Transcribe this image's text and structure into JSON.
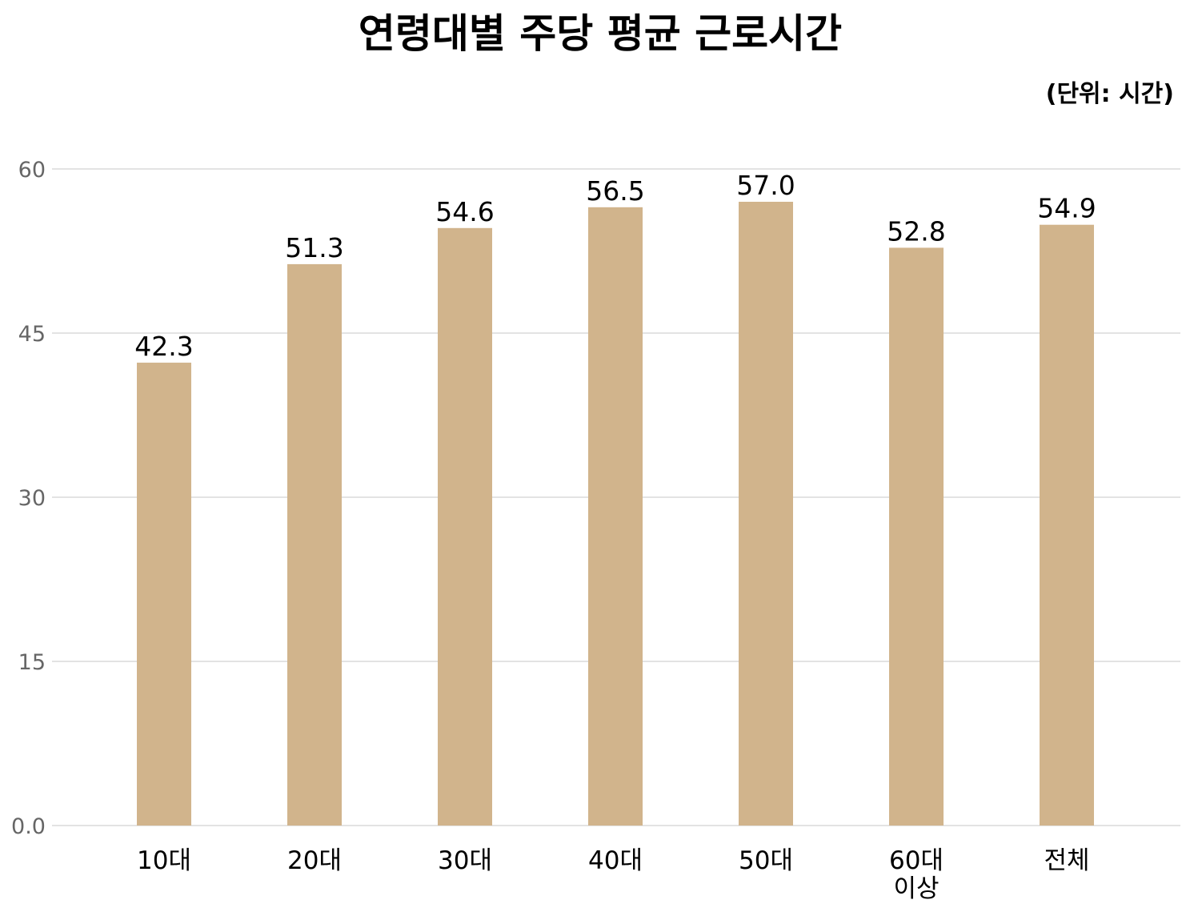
{
  "chart_data": {
    "type": "bar",
    "title": "연령대별 주당 평균 근로시간",
    "unit_note": "(단위: 시간)",
    "categories": [
      "10대",
      "20대",
      "30대",
      "40대",
      "50대",
      "60대\n이상",
      "전체"
    ],
    "values": [
      42.3,
      51.3,
      54.6,
      56.5,
      57.0,
      52.8,
      54.9
    ],
    "data_labels": [
      "42.3",
      "51.3",
      "54.6",
      "56.5",
      "57.0",
      "52.8",
      "54.9"
    ],
    "y_ticks": [
      0,
      15,
      30,
      45,
      60
    ],
    "y_tick_labels": [
      "0.0",
      "15",
      "30",
      "45",
      "60"
    ],
    "ylim": [
      0,
      60
    ],
    "xlabel": "",
    "ylabel": "",
    "grid": true,
    "legend": "none",
    "colors": {
      "bar": "#d1b48c",
      "grid": "#e3e3e3",
      "tick_label": "#666666",
      "text": "#000000"
    }
  }
}
